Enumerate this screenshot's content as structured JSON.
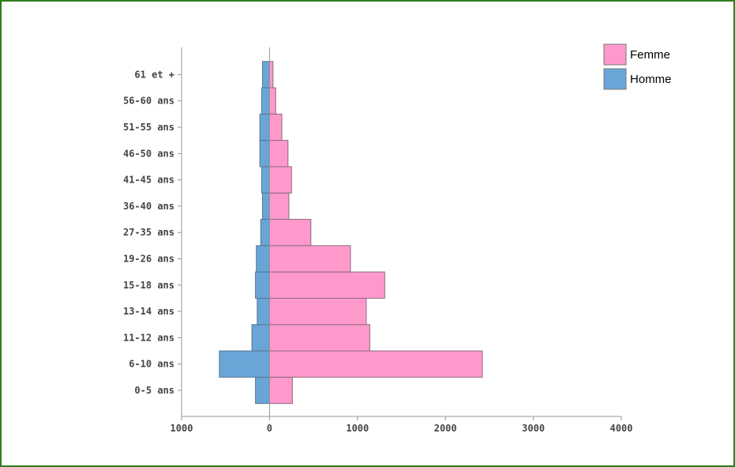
{
  "chart_data": {
    "type": "bar",
    "orientation": "horizontal",
    "categories": [
      "0-5 ans",
      "6-10 ans",
      "11-12 ans",
      "13-14 ans",
      "15-18 ans",
      "19-26 ans",
      "27-35 ans",
      "36-40 ans",
      "41-45 ans",
      "46-50 ans",
      "51-55 ans",
      "56-60 ans",
      "61 et +"
    ],
    "series": [
      {
        "name": "Femme",
        "color": "#ff99cc",
        "values": [
          260,
          2420,
          1140,
          1100,
          1310,
          920,
          470,
          220,
          250,
          210,
          140,
          70,
          40
        ]
      },
      {
        "name": "Homme",
        "color": "#6aa5d8",
        "values": [
          160,
          570,
          200,
          140,
          160,
          150,
          100,
          80,
          90,
          110,
          110,
          90,
          80
        ]
      }
    ],
    "homme_plotted_as_negative": true,
    "xticks": [
      "1000",
      "0",
      "1000",
      "2000",
      "3000",
      "4000"
    ],
    "xlim": [
      -1000,
      4000
    ],
    "legend_position": "top-right",
    "grid": false
  }
}
